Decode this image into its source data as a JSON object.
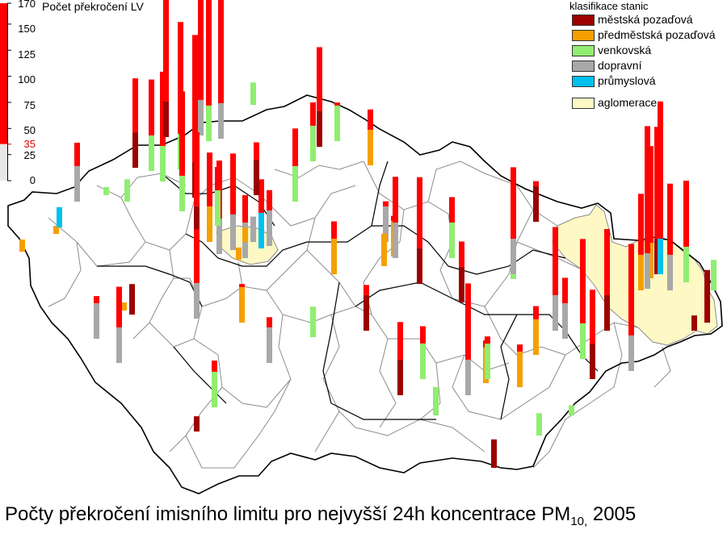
{
  "scale": {
    "title": "Počet překročení LV",
    "ticks": [
      "170",
      "150",
      "125",
      "100",
      "75",
      "50",
      "35",
      "25",
      "0"
    ],
    "tick_values": [
      170,
      150,
      125,
      100,
      75,
      50,
      35,
      25,
      0
    ],
    "limit_value": 35,
    "limit_color": "#e00000",
    "max_value": 170
  },
  "legend": {
    "title": "klasifikace stanic",
    "items": [
      {
        "label": "městská pozaďová",
        "color": "#9c0000"
      },
      {
        "label": "předměstská pozaďová",
        "color": "#f5a000"
      },
      {
        "label": "venkovská",
        "color": "#90ee70"
      },
      {
        "label": "dopravní",
        "color": "#a8a8a8"
      },
      {
        "label": "průmyslová",
        "color": "#00c0f0"
      },
      {
        "label": "aglomerace",
        "color": "#fdf8c4"
      }
    ]
  },
  "caption": {
    "text": "Počty překročení imisního limitu pro nejvyšší 24h koncentrace  PM",
    "sub": "10,",
    "year": " 2005"
  },
  "colors": {
    "exceedance": "#ff0000",
    "border": "#000000",
    "district": "#8c8c8c",
    "agglomeration": "#fdf8c4"
  },
  "chart_data": {
    "type": "bar",
    "y_unit": "počet překročení LV",
    "ylim": [
      0,
      170
    ],
    "stations": [
      {
        "class": "dopravní",
        "value": 58
      },
      {
        "class": "předměstská pozaďová",
        "value": 8
      },
      {
        "class": "průmyslová",
        "value": 20
      },
      {
        "class": "předměstská pozaďová",
        "value": 12
      },
      {
        "class": "venkovská",
        "value": 8
      },
      {
        "class": "venkovská",
        "value": 22
      },
      {
        "class": "venkovská",
        "value": 90
      },
      {
        "class": "městská pozaďová",
        "value": 88
      },
      {
        "class": "venkovská",
        "value": 108
      },
      {
        "class": "venkovská",
        "value": 145
      },
      {
        "class": "venkovská",
        "value": 118
      },
      {
        "class": "městská pozaďová",
        "value": 160
      },
      {
        "class": "dopravní",
        "value": 180
      },
      {
        "class": "městská pozaďová",
        "value": 140
      },
      {
        "class": "venkovská",
        "value": 168
      },
      {
        "class": "dopravní",
        "value": 140
      },
      {
        "class": "městská pozaďová",
        "value": 108
      },
      {
        "class": "předměstská pozaďová",
        "value": 88
      },
      {
        "class": "dopravní",
        "value": 92
      },
      {
        "class": "dopravní",
        "value": 95
      },
      {
        "class": "průmyslová",
        "value": 68
      },
      {
        "class": "dopravní",
        "value": 55
      },
      {
        "class": "venkovská",
        "value": 22
      },
      {
        "class": "městská pozaďová",
        "value": 52
      },
      {
        "class": "dopravní",
        "value": 62
      },
      {
        "class": "venkovská",
        "value": 58
      },
      {
        "class": "předměstská pozaďová",
        "value": 12
      },
      {
        "class": "dopravní",
        "value": 88
      },
      {
        "class": "venkovská",
        "value": 46
      },
      {
        "class": "městská pozaďová",
        "value": 15
      },
      {
        "class": "předměstská pozaďová",
        "value": 8
      },
      {
        "class": "městská pozaďová",
        "value": 30
      },
      {
        "class": "dopravní",
        "value": 75
      },
      {
        "class": "dopravní",
        "value": 42
      },
      {
        "class": "předměstská pozaďová",
        "value": 38
      },
      {
        "class": "předměstská pozaďová",
        "value": 14
      },
      {
        "class": "dopravní",
        "value": 25
      },
      {
        "class": "venkovská",
        "value": 30
      },
      {
        "class": "dopravní",
        "value": 45
      },
      {
        "class": "předměstská pozaďová",
        "value": 55
      },
      {
        "class": "předměstská pozaďová",
        "value": 52
      },
      {
        "class": "venkovská",
        "value": 58
      },
      {
        "class": "venkovská",
        "value": 38
      },
      {
        "class": "dopravní",
        "value": 40
      },
      {
        "class": "předměstská pozaďová",
        "value": 40
      },
      {
        "class": "dopravní",
        "value": 80
      },
      {
        "class": "venkovská",
        "value": 72
      },
      {
        "class": "městská pozaďová",
        "value": 98
      },
      {
        "class": "předměstská pozaďová",
        "value": 32
      },
      {
        "class": "městská pozaďová",
        "value": 45
      },
      {
        "class": "městská pozaďová",
        "value": 105
      },
      {
        "class": "venkovská",
        "value": 52
      },
      {
        "class": "venkovská",
        "value": 28
      },
      {
        "class": "městská pozaďová",
        "value": 60
      },
      {
        "class": "předměstská pozaďová",
        "value": 42
      },
      {
        "class": "venkovská",
        "value": 60
      },
      {
        "class": "dopravní",
        "value": 110
      },
      {
        "class": "městská pozaďová",
        "value": 72
      },
      {
        "class": "městská pozaďová",
        "value": 28
      },
      {
        "class": "venkovská",
        "value": 42
      },
      {
        "class": "venkovská",
        "value": 110
      },
      {
        "class": "venkovská",
        "value": 22
      },
      {
        "class": "dopravní",
        "value": 70
      },
      {
        "class": "městská pozaďová",
        "value": 40
      },
      {
        "class": "dopravní",
        "value": 102
      },
      {
        "class": "dopravní",
        "value": 60
      },
      {
        "class": "předměstská pozaďová",
        "value": 42
      },
      {
        "class": "předměstská pozaďová",
        "value": 48
      },
      {
        "class": "venkovská",
        "value": 118
      },
      {
        "class": "venkovská",
        "value": 10
      },
      {
        "class": "městská pozaďová",
        "value": 88
      },
      {
        "class": "městská pozaďová",
        "value": 100
      },
      {
        "class": "dopravní",
        "value": 125
      },
      {
        "class": "předměstská pozaďová",
        "value": 95
      },
      {
        "class": "městská pozaďová",
        "value": 145
      },
      {
        "class": "dopravní",
        "value": 105
      },
      {
        "class": "předměstská pozaďová",
        "value": 130
      },
      {
        "class": "průmyslová",
        "value": 170
      },
      {
        "class": "dopravní",
        "value": 160
      },
      {
        "class": "venkovská",
        "value": 100
      },
      {
        "class": "venkovská",
        "value": 30
      },
      {
        "class": "městská pozaďová",
        "value": 32
      },
      {
        "class": "městská pozaďová",
        "value": 28
      },
      {
        "class": "městská pozaďová",
        "value": 15
      }
    ]
  }
}
